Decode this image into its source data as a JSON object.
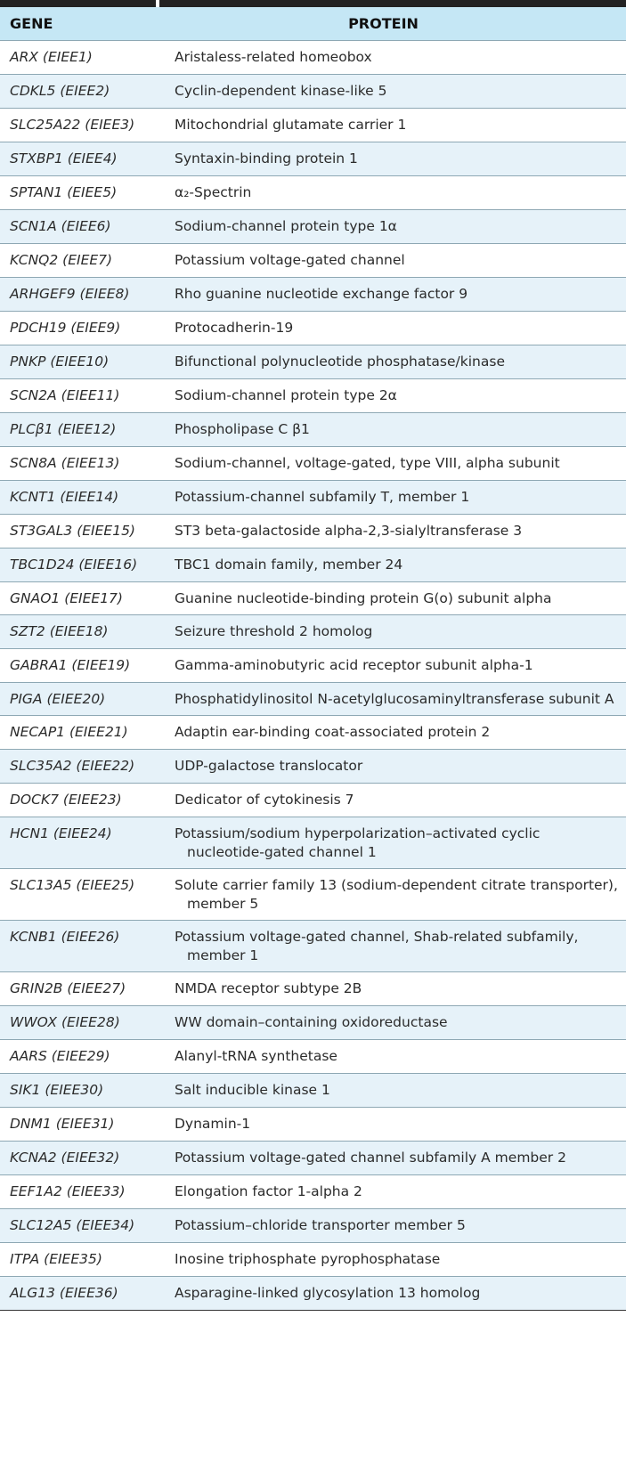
{
  "table": {
    "headers": {
      "gene": "GENE",
      "protein": "PROTEIN"
    },
    "rows": [
      {
        "gene": "ARX (EIEE1)",
        "protein": "Aristaless-related homeobox"
      },
      {
        "gene": "CDKL5 (EIEE2)",
        "protein": "Cyclin-dependent kinase-like 5"
      },
      {
        "gene": "SLC25A22 (EIEE3)",
        "protein": "Mitochondrial glutamate carrier 1"
      },
      {
        "gene": "STXBP1 (EIEE4)",
        "protein": "Syntaxin-binding protein 1"
      },
      {
        "gene": "SPTAN1 (EIEE5)",
        "protein": "α₂-Spectrin"
      },
      {
        "gene": "SCN1A (EIEE6)",
        "protein": "Sodium-channel protein type 1α"
      },
      {
        "gene": "KCNQ2 (EIEE7)",
        "protein": "Potassium voltage-gated channel"
      },
      {
        "gene": "ARHGEF9 (EIEE8)",
        "protein": "Rho guanine nucleotide exchange factor 9"
      },
      {
        "gene": "PDCH19 (EIEE9)",
        "protein": "Protocadherin-19"
      },
      {
        "gene": "PNKP (EIEE10)",
        "protein": "Bifunctional polynucleotide phosphatase/kinase"
      },
      {
        "gene": "SCN2A (EIEE11)",
        "protein": "Sodium-channel protein type 2α"
      },
      {
        "gene": "PLCβ1 (EIEE12)",
        "protein": "Phospholipase C β1"
      },
      {
        "gene": "SCN8A (EIEE13)",
        "protein": "Sodium-channel, voltage-gated, type VIII, alpha subunit"
      },
      {
        "gene": "KCNT1 (EIEE14)",
        "protein": "Potassium-channel subfamily T, member 1"
      },
      {
        "gene": "ST3GAL3 (EIEE15)",
        "protein": "ST3 beta-galactoside alpha-2,3-sialyltransferase 3"
      },
      {
        "gene": "TBC1D24 (EIEE16)",
        "protein": "TBC1 domain family, member 24"
      },
      {
        "gene": "GNAO1 (EIEE17)",
        "protein": "Guanine nucleotide-binding protein G(o) subunit alpha"
      },
      {
        "gene": "SZT2 (EIEE18)",
        "protein": "Seizure threshold 2 homolog"
      },
      {
        "gene": "GABRA1 (EIEE19)",
        "protein": "Gamma-aminobutyric acid receptor subunit alpha-1"
      },
      {
        "gene": "PIGA (EIEE20)",
        "protein": "Phosphatidylinositol N-acetylglucosaminyltransferase subunit A"
      },
      {
        "gene": "NECAP1 (EIEE21)",
        "protein": "Adaptin ear-binding coat-associated protein 2"
      },
      {
        "gene": "SLC35A2 (EIEE22)",
        "protein": "UDP-galactose translocator"
      },
      {
        "gene": "DOCK7 (EIEE23)",
        "protein": "Dedicator of cytokinesis 7"
      },
      {
        "gene": "HCN1 (EIEE24)",
        "protein": "Potassium/sodium hyperpolarization–activated cyclic nucleotide-gated channel 1"
      },
      {
        "gene": "SLC13A5 (EIEE25)",
        "protein": "Solute carrier family 13 (sodium-dependent citrate transporter), member 5"
      },
      {
        "gene": "KCNB1 (EIEE26)",
        "protein": "Potassium voltage-gated channel, Shab-related subfamily, member 1"
      },
      {
        "gene": "GRIN2B (EIEE27)",
        "protein": "NMDA receptor subtype 2B"
      },
      {
        "gene": "WWOX (EIEE28)",
        "protein": "WW domain–containing oxidoreductase"
      },
      {
        "gene": "AARS (EIEE29)",
        "protein": "Alanyl-tRNA synthetase"
      },
      {
        "gene": "SIK1 (EIEE30)",
        "protein": "Salt inducible kinase 1"
      },
      {
        "gene": "DNM1 (EIEE31)",
        "protein": "Dynamin-1"
      },
      {
        "gene": "KCNA2 (EIEE32)",
        "protein": "Potassium voltage-gated channel subfamily A member 2"
      },
      {
        "gene": "EEF1A2 (EIEE33)",
        "protein": "Elongation factor 1-alpha 2"
      },
      {
        "gene": "SLC12A5 (EIEE34)",
        "protein": "Potassium–chloride transporter member 5"
      },
      {
        "gene": "ITPA (EIEE35)",
        "protein": "Inosine triphosphate pyrophosphatase"
      },
      {
        "gene": "ALG13 (EIEE36)",
        "protein": "Asparagine-linked glycosylation 13 homolog"
      }
    ]
  },
  "colors": {
    "header_background": "#c5e7f5",
    "stripe_background": "#e6f2f9",
    "rule": "#8ea8b4",
    "top_bar": "#222222"
  }
}
